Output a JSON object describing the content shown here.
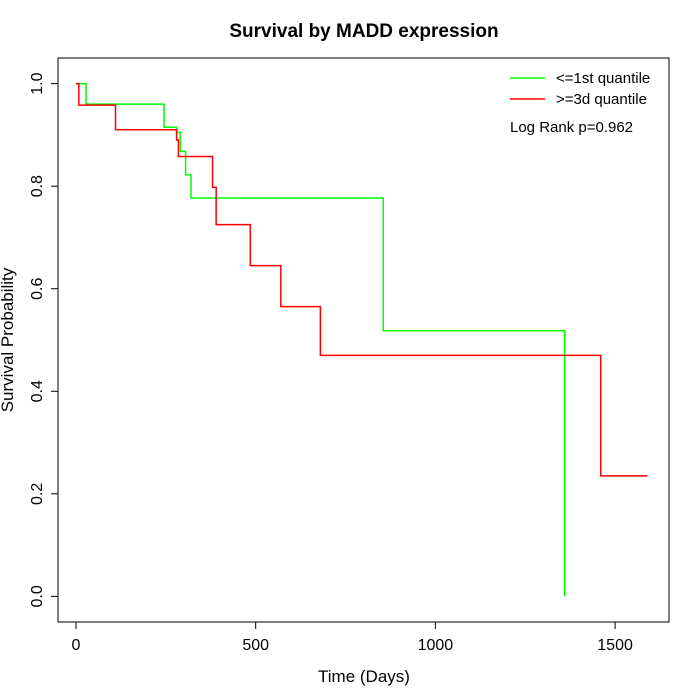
{
  "chart_data": {
    "type": "line",
    "title": "Survival by MADD expression",
    "xlabel": "Time (Days)",
    "ylabel": "Survival Probability",
    "xlim": [
      -50,
      1650
    ],
    "ylim": [
      -0.05,
      1.05
    ],
    "x_ticks": [
      0,
      500,
      1000,
      1500
    ],
    "x_tick_labels": [
      "0",
      "500",
      "1000",
      "1500"
    ],
    "y_ticks": [
      0.0,
      0.2,
      0.4,
      0.6,
      0.8,
      1.0
    ],
    "y_tick_labels": [
      "0.0",
      "0.2",
      "0.4",
      "0.6",
      "0.8",
      "1.0"
    ],
    "grid": false,
    "legend_position": "top-right",
    "annotation": "Log Rank p=0.962",
    "series": [
      {
        "name": "<=1st quantile",
        "color": "#00ff00",
        "step": true,
        "x": [
          0,
          28,
          245,
          280,
          290,
          305,
          320,
          855,
          1360,
          1360
        ],
        "y": [
          1.0,
          0.96,
          0.915,
          0.905,
          0.868,
          0.822,
          0.777,
          0.518,
          0.518,
          0.0
        ]
      },
      {
        "name": ">=3d quantile",
        "color": "#ff0000",
        "step": true,
        "x": [
          0,
          8,
          110,
          280,
          285,
          380,
          390,
          485,
          570,
          680,
          1460,
          1590
        ],
        "y": [
          1.0,
          0.958,
          0.91,
          0.89,
          0.858,
          0.798,
          0.725,
          0.645,
          0.565,
          0.47,
          0.235,
          0.235
        ]
      }
    ]
  }
}
